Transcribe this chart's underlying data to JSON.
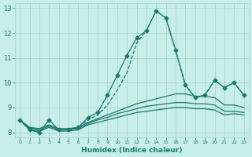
{
  "title": "",
  "xlabel": "Humidex (Indice chaleur)",
  "background_color": "#c8eee8",
  "plot_bg_color": "#c8eee8",
  "grid_color": "#a0d0cc",
  "line_color": "#1a7a6e",
  "xlim": [
    -0.5,
    23.5
  ],
  "ylim": [
    7.8,
    13.2
  ],
  "xticks": [
    0,
    1,
    2,
    3,
    4,
    5,
    6,
    7,
    8,
    9,
    10,
    11,
    12,
    13,
    14,
    15,
    16,
    17,
    18,
    19,
    20,
    21,
    22,
    23
  ],
  "yticks": [
    8,
    9,
    10,
    11,
    12,
    13
  ],
  "series_main": [
    8.5,
    8.1,
    8.0,
    8.5,
    8.1,
    8.1,
    8.2,
    8.6,
    8.8,
    9.5,
    10.3,
    11.1,
    11.8,
    12.1,
    12.9,
    12.6,
    11.3,
    9.9,
    9.4,
    9.5,
    10.1,
    9.8,
    10.0,
    9.5
  ],
  "series_dashed": [
    8.5,
    8.1,
    8.0,
    8.3,
    8.1,
    8.1,
    8.2,
    8.5,
    8.7,
    9.1,
    9.7,
    10.4,
    11.6,
    12.1,
    12.9,
    12.6,
    11.3,
    9.9,
    9.4,
    9.5,
    10.1,
    9.8,
    10.0,
    9.5
  ],
  "series_lower1": [
    8.5,
    8.2,
    8.15,
    8.3,
    8.15,
    8.15,
    8.2,
    8.4,
    8.55,
    8.7,
    8.85,
    9.0,
    9.15,
    9.25,
    9.35,
    9.45,
    9.55,
    9.55,
    9.45,
    9.45,
    9.4,
    9.1,
    9.1,
    9.0
  ],
  "series_lower2": [
    8.5,
    8.2,
    8.1,
    8.25,
    8.1,
    8.1,
    8.15,
    8.35,
    8.5,
    8.6,
    8.75,
    8.85,
    8.95,
    9.05,
    9.1,
    9.15,
    9.2,
    9.2,
    9.15,
    9.15,
    9.1,
    8.85,
    8.85,
    8.8
  ],
  "series_lower3": [
    8.5,
    8.15,
    8.05,
    8.2,
    8.05,
    8.05,
    8.1,
    8.3,
    8.4,
    8.5,
    8.6,
    8.7,
    8.8,
    8.85,
    8.9,
    8.95,
    9.0,
    9.0,
    8.95,
    8.95,
    8.9,
    8.7,
    8.75,
    8.7
  ],
  "marker": "D",
  "markersize": 2.5,
  "linewidth": 0.9
}
